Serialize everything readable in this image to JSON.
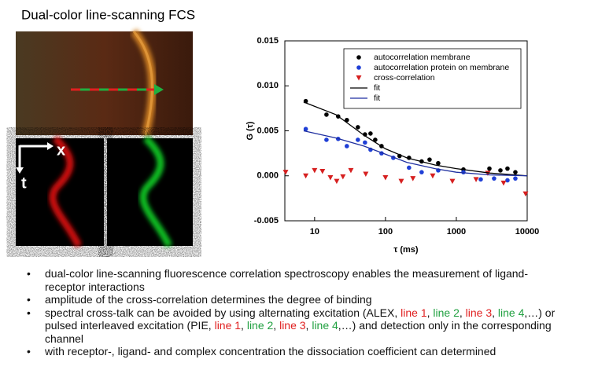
{
  "header": {
    "title": "Dual-color line-scanning FCS"
  },
  "image": {
    "x_label": "x",
    "t_label": "t"
  },
  "chart_data": {
    "type": "scatter",
    "xlabel": "τ (ms)",
    "ylabel": "G (τ)",
    "xscale": "log",
    "xlim": [
      3.8,
      10000
    ],
    "ylim": [
      -0.005,
      0.015
    ],
    "xticks": [
      10,
      100,
      1000,
      10000
    ],
    "yticks": [
      -0.005,
      {
        "value": 0,
        "label": "0.000"
      },
      0.005,
      {
        "value": 0.01,
        "label": "0.010"
      },
      0.015
    ],
    "legend": "upper right",
    "series": [
      {
        "name": "autocorrelation membrane",
        "color": "#000000",
        "marker": "circle",
        "x": [
          7.5,
          14.7,
          21.5,
          28.5,
          40.8,
          51.4,
          61.5,
          71.7,
          88,
          158,
          215,
          324,
          419,
          555,
          1259,
          2930,
          4190,
          5270,
          6810
        ],
        "values": [
          0.0083,
          0.0068,
          0.0066,
          0.0062,
          0.0054,
          0.0046,
          0.0047,
          0.004,
          0.0033,
          0.0022,
          0.002,
          0.0016,
          0.0018,
          0.0014,
          0.0007,
          0.0008,
          0.0006,
          0.0008,
          0.0004
        ]
      },
      {
        "name": "autocorrelation protein on membrane",
        "color": "#1f3fd6",
        "marker": "circle",
        "x": [
          7.5,
          14.7,
          21.5,
          28.5,
          40.8,
          51.4,
          61.5,
          88,
          129,
          215,
          324,
          555,
          1259,
          2210,
          3410,
          5270,
          6810
        ],
        "values": [
          0.0052,
          0.004,
          0.0041,
          0.0033,
          0.004,
          0.0037,
          0.0029,
          0.0025,
          0.002,
          0.0009,
          0.0004,
          0.0006,
          0.0004,
          -0.0004,
          -0.0003,
          -0.0005,
          -0.0003
        ]
      },
      {
        "name": "cross-correlation",
        "color": "#d62020",
        "marker": "triangle",
        "x": [
          3.9,
          7.5,
          10,
          12.9,
          16.7,
          20.5,
          25.1,
          32.5,
          52.7,
          100,
          167,
          244,
          464,
          880,
          1900,
          2780,
          4640,
          9500
        ],
        "values": [
          0.0004,
          0,
          0.0006,
          0.0005,
          -0.0002,
          -0.0006,
          -0.0001,
          0.0006,
          0.0002,
          -0.0002,
          -0.0006,
          -0.0003,
          0,
          -0.0006,
          -0.0004,
          0.0003,
          -0.0008,
          -0.002
        ]
      },
      {
        "name": "fit",
        "color": "#000000",
        "marker": "line",
        "x": [
          7,
          20,
          50,
          100,
          200,
          500,
          1000,
          3000,
          10000
        ],
        "values": [
          0.0082,
          0.0068,
          0.0045,
          0.003,
          0.002,
          0.0012,
          0.0008,
          0.0003,
          0
        ]
      },
      {
        "name": "fit",
        "color": "#1f2fa0",
        "marker": "line",
        "x": [
          7,
          20,
          50,
          100,
          200,
          500,
          1000,
          3000,
          10000
        ],
        "values": [
          0.005,
          0.0042,
          0.0033,
          0.0024,
          0.0015,
          0.0008,
          0.0004,
          0.0001,
          0
        ]
      }
    ]
  },
  "bullets": [
    {
      "parts": [
        {
          "text": "dual-color line-scanning fluorescence correlation spectroscopy enables the measurement of ligand-receptor interactions"
        }
      ]
    },
    {
      "parts": [
        {
          "text": "amplitude of the cross-correlation determines the degree of binding"
        }
      ]
    },
    {
      "parts": [
        {
          "text": "spectral cross-talk can be avoided by using alternating excitation (ALEX, "
        },
        {
          "text": "line 1",
          "color": "#e02020"
        },
        {
          "text": ", "
        },
        {
          "text": "line 2",
          "color": "#20a040"
        },
        {
          "text": ", "
        },
        {
          "text": "line 3",
          "color": "#e02020"
        },
        {
          "text": ", "
        },
        {
          "text": "line 4",
          "color": "#20a040"
        },
        {
          "text": ",…) or pulsed interleaved excitation (PIE, "
        },
        {
          "text": "line 1",
          "color": "#e02020"
        },
        {
          "text": ", "
        },
        {
          "text": "line 2",
          "color": "#20a040"
        },
        {
          "text": ", "
        },
        {
          "text": "line 3",
          "color": "#e02020"
        },
        {
          "text": ", "
        },
        {
          "text": "line 4",
          "color": "#20a040"
        },
        {
          "text": ",…) and detection only in the corresponding channel"
        }
      ]
    },
    {
      "parts": [
        {
          "text": "with receptor-, ligand- and complex concentration  the dissociation coefficient can determined"
        }
      ]
    }
  ]
}
